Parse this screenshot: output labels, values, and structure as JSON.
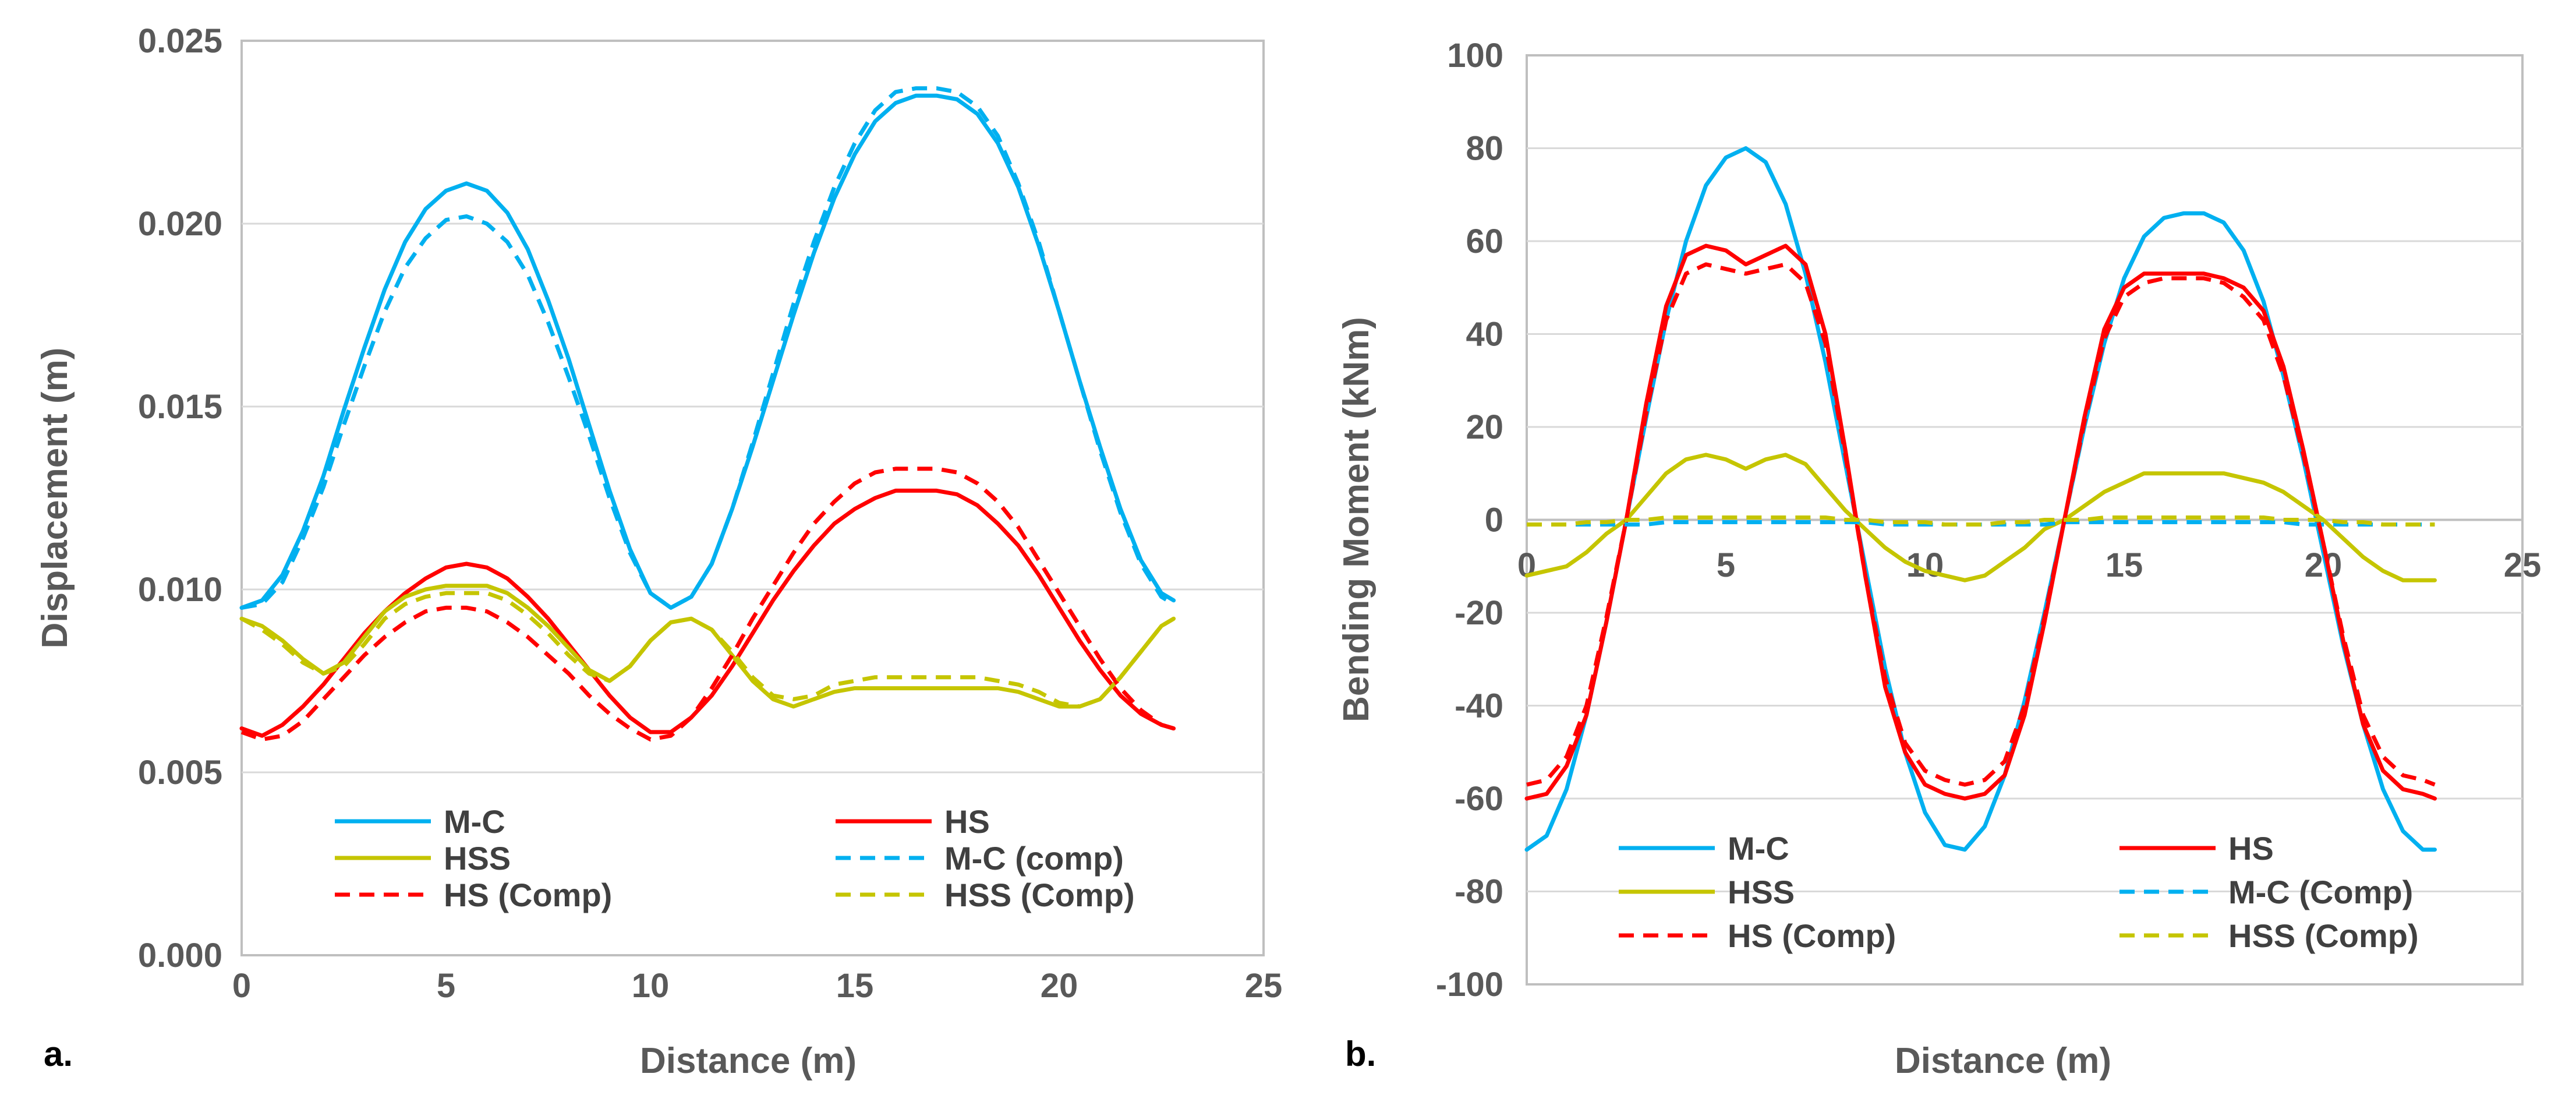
{
  "figure": {
    "panel_a_label": "a.",
    "panel_b_label": "b."
  },
  "colors": {
    "mc": "#00b0f0",
    "hs": "#ff0000",
    "hss": "#c5c500",
    "axis_text": "#595959",
    "frame": "#bfbfbf"
  },
  "chart_data": [
    {
      "type": "line",
      "panel": "a.",
      "xlabel": "Distance (m)",
      "ylabel": "Displacement (m)",
      "xlim": [
        0,
        25
      ],
      "ylim": [
        0,
        0.025
      ],
      "xticks": [
        "0",
        "5",
        "10",
        "15",
        "20",
        "25"
      ],
      "yticks": [
        "0.000",
        "0.005",
        "0.010",
        "0.015",
        "0.020",
        "0.025"
      ],
      "x": [
        0,
        0.5,
        1,
        1.5,
        2,
        2.5,
        3,
        3.5,
        4,
        4.5,
        5,
        5.5,
        6,
        6.5,
        7,
        7.5,
        8,
        8.5,
        9,
        9.5,
        10,
        10.5,
        11,
        11.5,
        12,
        12.5,
        13,
        13.5,
        14,
        14.5,
        15,
        15.5,
        16,
        16.5,
        17,
        17.5,
        18,
        18.5,
        19,
        19.5,
        20,
        20.5,
        21,
        21.5,
        22,
        22.5,
        22.8
      ],
      "series": [
        {
          "name": "M-C",
          "style": "solid",
          "color": "#00b0f0",
          "values": [
            0.0095,
            0.0097,
            0.0104,
            0.0116,
            0.0131,
            0.0149,
            0.0166,
            0.0182,
            0.0195,
            0.0204,
            0.0209,
            0.0211,
            0.0209,
            0.0203,
            0.0193,
            0.0179,
            0.0163,
            0.0145,
            0.0127,
            0.0111,
            0.0099,
            0.0095,
            0.0098,
            0.0107,
            0.0122,
            0.0139,
            0.0157,
            0.0175,
            0.0192,
            0.0207,
            0.0219,
            0.0228,
            0.0233,
            0.0235,
            0.0235,
            0.0234,
            0.023,
            0.0222,
            0.021,
            0.0194,
            0.0176,
            0.0157,
            0.0139,
            0.0122,
            0.0108,
            0.0099,
            0.0097
          ]
        },
        {
          "name": "HS",
          "style": "solid",
          "color": "#ff0000",
          "values": [
            0.0062,
            0.006,
            0.0063,
            0.0068,
            0.0074,
            0.0081,
            0.0088,
            0.0094,
            0.0099,
            0.0103,
            0.0106,
            0.0107,
            0.0106,
            0.0103,
            0.0098,
            0.0092,
            0.0085,
            0.0078,
            0.0071,
            0.0065,
            0.0061,
            0.0061,
            0.0065,
            0.0071,
            0.0079,
            0.0088,
            0.0097,
            0.0105,
            0.0112,
            0.0118,
            0.0122,
            0.0125,
            0.0127,
            0.0127,
            0.0127,
            0.0126,
            0.0123,
            0.0118,
            0.0112,
            0.0104,
            0.0095,
            0.0086,
            0.0078,
            0.0071,
            0.0066,
            0.0063,
            0.0062
          ]
        },
        {
          "name": "HSS",
          "style": "solid",
          "color": "#c5c500",
          "values": [
            0.0092,
            0.009,
            0.0086,
            0.0081,
            0.0077,
            0.008,
            0.0087,
            0.0094,
            0.0098,
            0.01,
            0.0101,
            0.0101,
            0.0101,
            0.0099,
            0.0095,
            0.009,
            0.0084,
            0.0078,
            0.0075,
            0.0079,
            0.0086,
            0.0091,
            0.0092,
            0.0089,
            0.0082,
            0.0075,
            0.007,
            0.0068,
            0.007,
            0.0072,
            0.0073,
            0.0073,
            0.0073,
            0.0073,
            0.0073,
            0.0073,
            0.0073,
            0.0073,
            0.0072,
            0.007,
            0.0068,
            0.0068,
            0.007,
            0.0076,
            0.0083,
            0.009,
            0.0092
          ]
        },
        {
          "name": "M-C (comp)",
          "style": "dash",
          "color": "#00b0f0",
          "values": [
            0.0095,
            0.0096,
            0.0102,
            0.0114,
            0.0128,
            0.0145,
            0.0161,
            0.0176,
            0.0188,
            0.0196,
            0.0201,
            0.0202,
            0.02,
            0.0195,
            0.0186,
            0.0173,
            0.0158,
            0.0142,
            0.0125,
            0.011,
            0.0099,
            0.0095,
            0.0098,
            0.0107,
            0.0122,
            0.014,
            0.0159,
            0.0178,
            0.0195,
            0.021,
            0.0222,
            0.0231,
            0.0236,
            0.0237,
            0.0237,
            0.0236,
            0.0232,
            0.0224,
            0.0211,
            0.0195,
            0.0176,
            0.0157,
            0.0138,
            0.0121,
            0.0107,
            0.0098,
            0.0096
          ]
        },
        {
          "name": "HS (Comp)",
          "style": "dash",
          "color": "#ff0000",
          "values": [
            0.0061,
            0.0059,
            0.006,
            0.0064,
            0.007,
            0.0076,
            0.0082,
            0.0087,
            0.0091,
            0.0094,
            0.0095,
            0.0095,
            0.0094,
            0.0091,
            0.0087,
            0.0082,
            0.0077,
            0.0071,
            0.0066,
            0.0062,
            0.0059,
            0.006,
            0.0065,
            0.0073,
            0.0082,
            0.0092,
            0.0101,
            0.011,
            0.0118,
            0.0124,
            0.0129,
            0.0132,
            0.0133,
            0.0133,
            0.0133,
            0.0132,
            0.0129,
            0.0124,
            0.0117,
            0.0108,
            0.0099,
            0.009,
            0.0081,
            0.0073,
            0.0067,
            0.0063,
            0.0062
          ]
        },
        {
          "name": "HSS (Comp)",
          "style": "dash",
          "color": "#c5c500",
          "values": [
            0.0092,
            0.0089,
            0.0085,
            0.008,
            0.0077,
            0.0079,
            0.0085,
            0.0092,
            0.0096,
            0.0098,
            0.0099,
            0.0099,
            0.0099,
            0.0097,
            0.0093,
            0.0088,
            0.0082,
            0.0077,
            0.0075,
            0.0079,
            0.0086,
            0.0091,
            0.0092,
            0.0089,
            0.0083,
            0.0076,
            0.0071,
            0.007,
            0.0071,
            0.0074,
            0.0075,
            0.0076,
            0.0076,
            0.0076,
            0.0076,
            0.0076,
            0.0076,
            0.0075,
            0.0074,
            0.0072,
            0.0069,
            0.0068,
            0.007,
            0.0076,
            0.0083,
            0.009,
            0.0092
          ]
        }
      ],
      "legend": [
        "M-C",
        "HS",
        "HSS",
        "M-C (comp)",
        "HS (Comp)",
        "HSS (Comp)"
      ],
      "legend_position": "bottom"
    },
    {
      "type": "line",
      "panel": "b.",
      "xlabel": "Distance (m)",
      "ylabel": "Bending Moment (kNm)",
      "xlim": [
        0,
        25
      ],
      "ylim": [
        -100,
        100
      ],
      "xticks": [
        "0",
        "5",
        "10",
        "15",
        "20",
        "25"
      ],
      "yticks": [
        "-100",
        "-80",
        "-60",
        "-40",
        "-20",
        "0",
        "20",
        "40",
        "60",
        "80",
        "100"
      ],
      "x": [
        0,
        0.5,
        1,
        1.5,
        2,
        2.5,
        3,
        3.5,
        4,
        4.5,
        5,
        5.5,
        6,
        6.5,
        7,
        7.5,
        8,
        8.5,
        9,
        9.5,
        10,
        10.5,
        11,
        11.5,
        12,
        12.5,
        13,
        13.5,
        14,
        14.5,
        15,
        15.5,
        16,
        16.5,
        17,
        17.5,
        18,
        18.5,
        19,
        19.5,
        20,
        20.5,
        21,
        21.5,
        22,
        22.5,
        22.8
      ],
      "series": [
        {
          "name": "M-C",
          "style": "solid",
          "color": "#00b0f0",
          "values": [
            -71,
            -68,
            -58,
            -42,
            -22,
            0,
            22,
            43,
            60,
            72,
            78,
            80,
            77,
            68,
            53,
            34,
            12,
            -10,
            -32,
            -50,
            -63,
            -70,
            -71,
            -66,
            -55,
            -39,
            -20,
            0,
            20,
            38,
            52,
            61,
            65,
            66,
            66,
            64,
            58,
            47,
            31,
            13,
            -7,
            -27,
            -44,
            -58,
            -67,
            -71,
            -71
          ]
        },
        {
          "name": "HS",
          "style": "solid",
          "color": "#ff0000",
          "values": [
            -60,
            -59,
            -53,
            -42,
            -22,
            0,
            25,
            46,
            57,
            59,
            58,
            55,
            57,
            59,
            55,
            40,
            15,
            -12,
            -36,
            -50,
            -57,
            -59,
            -60,
            -59,
            -55,
            -42,
            -22,
            0,
            22,
            41,
            50,
            53,
            53,
            53,
            53,
            52,
            50,
            45,
            33,
            15,
            -5,
            -26,
            -44,
            -54,
            -58,
            -59,
            -60
          ]
        },
        {
          "name": "HSS",
          "style": "solid",
          "color": "#c5c500",
          "values": [
            -12,
            -11,
            -10,
            -7,
            -3,
            0,
            5,
            10,
            13,
            14,
            13,
            11,
            13,
            14,
            12,
            7,
            2,
            -2,
            -6,
            -9,
            -11,
            -12,
            -13,
            -12,
            -9,
            -6,
            -2,
            0,
            3,
            6,
            8,
            10,
            10,
            10,
            10,
            10,
            9,
            8,
            6,
            3,
            0,
            -4,
            -8,
            -11,
            -13,
            -13,
            -13
          ]
        },
        {
          "name": "M-C (Comp)",
          "style": "dash",
          "color": "#00b0f0",
          "values": [
            -1,
            -1,
            -1,
            -1,
            -1,
            -1,
            -1,
            -0.5,
            -0.5,
            -0.5,
            -0.5,
            -0.5,
            -0.5,
            -0.5,
            -0.5,
            -0.5,
            -0.5,
            -0.5,
            -1,
            -1,
            -1,
            -1,
            -1,
            -1,
            -1,
            -1,
            -1,
            -0.5,
            -0.5,
            -0.5,
            -0.5,
            -0.5,
            -0.5,
            -0.5,
            -0.5,
            -0.5,
            -0.5,
            -0.5,
            -0.5,
            -1,
            -1,
            -1,
            -1,
            -1,
            -1,
            -1,
            -1
          ]
        },
        {
          "name": "HS (Comp)",
          "style": "dash",
          "color": "#ff0000",
          "values": [
            -57,
            -56,
            -51,
            -40,
            -21,
            0,
            23,
            43,
            53,
            55,
            54,
            53,
            54,
            55,
            51,
            38,
            14,
            -12,
            -34,
            -48,
            -54,
            -56,
            -57,
            -56,
            -52,
            -40,
            -21,
            0,
            21,
            39,
            48,
            51,
            52,
            52,
            52,
            51,
            48,
            43,
            31,
            14,
            -5,
            -25,
            -42,
            -51,
            -55,
            -56,
            -57
          ]
        },
        {
          "name": "HSS (Comp)",
          "style": "dash",
          "color": "#c5c500",
          "values": [
            -1,
            -1,
            -1,
            -0.5,
            -0.5,
            0,
            0,
            0.5,
            0.5,
            0.5,
            0.5,
            0.5,
            0.5,
            0.5,
            0.5,
            0.5,
            0,
            0,
            -0.5,
            -0.5,
            -0.5,
            -1,
            -1,
            -1,
            -0.5,
            -0.5,
            0,
            0,
            0,
            0.5,
            0.5,
            0.5,
            0.5,
            0.5,
            0.5,
            0.5,
            0.5,
            0.5,
            0,
            0,
            0,
            -0.5,
            -0.5,
            -1,
            -1,
            -1,
            -1
          ]
        }
      ],
      "legend": [
        "M-C",
        "HS",
        "HSS",
        "M-C (Comp)",
        "HS (Comp)",
        "HSS (Comp)"
      ],
      "legend_position": "bottom"
    }
  ]
}
